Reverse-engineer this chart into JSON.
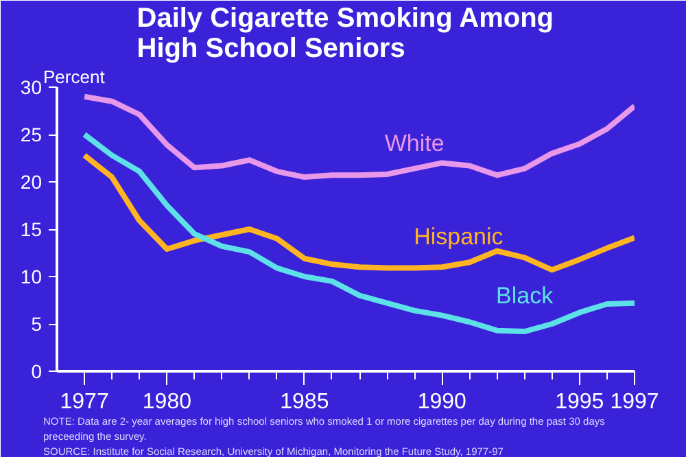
{
  "chart_data": {
    "type": "line",
    "title": "Daily Cigarette Smoking Among High School Seniors",
    "ylabel": "Percent",
    "x": [
      1977,
      1978,
      1979,
      1980,
      1981,
      1982,
      1983,
      1984,
      1985,
      1986,
      1987,
      1988,
      1989,
      1990,
      1991,
      1992,
      1993,
      1994,
      1995,
      1996,
      1997
    ],
    "series": [
      {
        "name": "White",
        "color": "#e898e8",
        "values": [
          29.0,
          28.5,
          27.1,
          23.9,
          21.5,
          21.7,
          22.3,
          21.1,
          20.5,
          20.7,
          20.7,
          20.8,
          21.4,
          22.0,
          21.7,
          20.7,
          21.4,
          23.0,
          24.0,
          25.6,
          28.0
        ]
      },
      {
        "name": "Hispanic",
        "color": "#ffb521",
        "values": [
          22.8,
          20.5,
          15.9,
          12.9,
          13.8,
          14.4,
          15.0,
          14.0,
          11.9,
          11.3,
          11.0,
          10.9,
          10.9,
          11.0,
          11.5,
          12.7,
          12.0,
          10.7,
          11.8,
          13.0,
          14.1
        ]
      },
      {
        "name": "Black",
        "color": "#5ee0e8",
        "values": [
          25.0,
          22.8,
          21.1,
          17.5,
          14.5,
          13.2,
          12.6,
          10.9,
          10.0,
          9.5,
          8.0,
          7.2,
          6.4,
          5.9,
          5.2,
          4.3,
          4.2,
          5.0,
          6.2,
          7.1,
          7.2
        ]
      }
    ],
    "xlim": [
      1976,
      1997
    ],
    "ylim": [
      0,
      30
    ],
    "xticks": [
      1977,
      1980,
      1985,
      1990,
      1995,
      1997
    ],
    "yticks": [
      0,
      5,
      10,
      15,
      20,
      25,
      30
    ],
    "grid": false,
    "annotations": [
      "NOTE: Data are 2- year averages for high school seniors who smoked 1 or more cigarettes per day during the past 30 days preceeding the survey.",
      "SOURCE: Institute for Social Research, University of Michigan, Monitoring the Future Study, 1977-97"
    ]
  }
}
